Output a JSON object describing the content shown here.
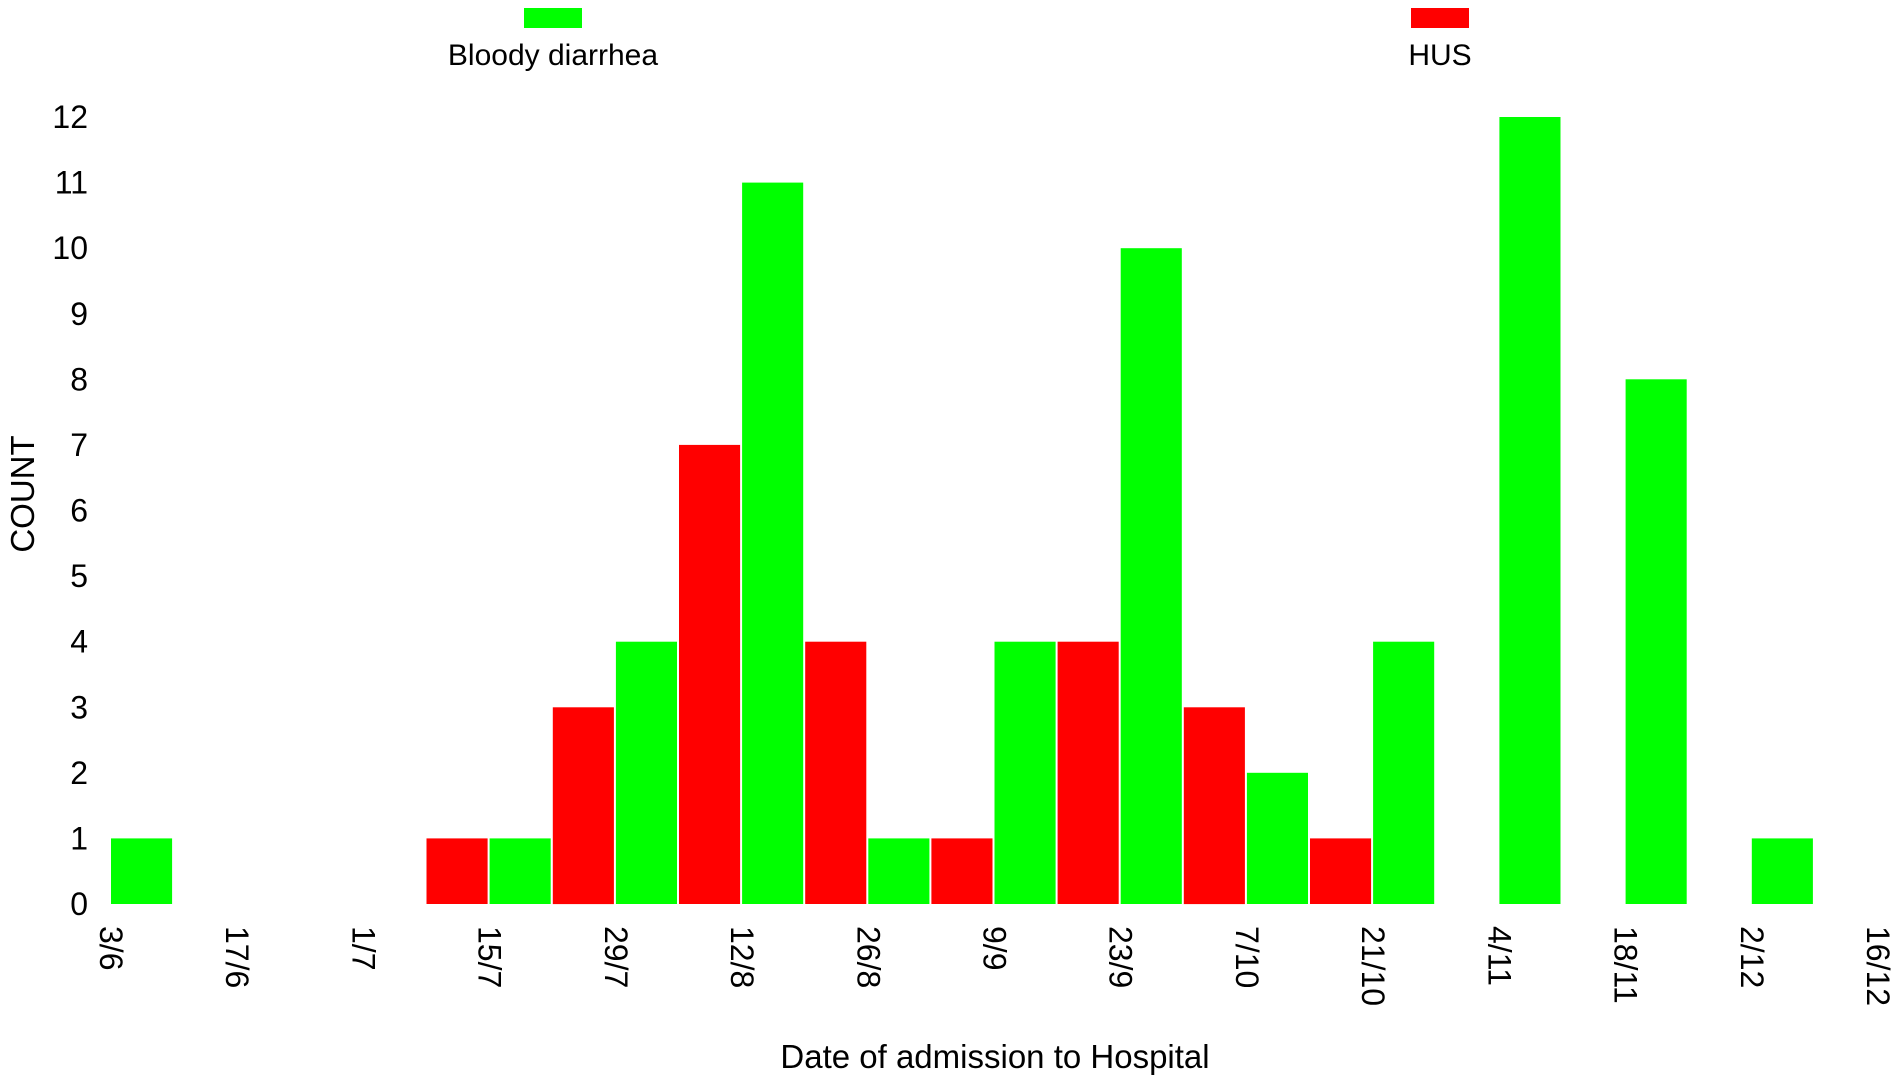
{
  "chart_data": {
    "type": "bar",
    "xlabel": "Date of admission to Hospital",
    "ylabel": "COUNT",
    "ylim": [
      0,
      12
    ],
    "yticks": [
      "0",
      "1",
      "2",
      "3",
      "4",
      "5",
      "6",
      "7",
      "8",
      "9",
      "10",
      "11",
      "12"
    ],
    "xticks": [
      "3/6",
      "17/6",
      "1/7",
      "15/7",
      "29/7",
      "12/8",
      "26/8",
      "9/9",
      "23/9",
      "7/10",
      "21/10",
      "4/11",
      "18/11",
      "2/12",
      "16/12"
    ],
    "grid": false,
    "legend_position": "top",
    "series": [
      {
        "name": "Bloody diarrhea",
        "color": "#00ff00"
      },
      {
        "name": "HUS",
        "color": "#ff0000"
      }
    ],
    "bars": [
      {
        "start": "3/6",
        "end": "10/6",
        "series": "Bloody diarrhea",
        "value": 1
      },
      {
        "start": "8/7",
        "end": "15/7",
        "series": "HUS",
        "value": 1
      },
      {
        "start": "15/7",
        "end": "22/7",
        "series": "Bloody diarrhea",
        "value": 1
      },
      {
        "start": "22/7",
        "end": "29/7",
        "series": "HUS",
        "value": 3
      },
      {
        "start": "29/7",
        "end": "5/8",
        "series": "Bloody diarrhea",
        "value": 4
      },
      {
        "start": "5/8",
        "end": "12/8",
        "series": "HUS",
        "value": 7
      },
      {
        "start": "12/8",
        "end": "19/8",
        "series": "Bloody diarrhea",
        "value": 11
      },
      {
        "start": "19/8",
        "end": "26/8",
        "series": "HUS",
        "value": 4
      },
      {
        "start": "26/8",
        "end": "2/9",
        "series": "Bloody diarrhea",
        "value": 1
      },
      {
        "start": "2/9",
        "end": "9/9",
        "series": "HUS",
        "value": 1
      },
      {
        "start": "9/9",
        "end": "16/9",
        "series": "Bloody diarrhea",
        "value": 4
      },
      {
        "start": "16/9",
        "end": "23/9",
        "series": "HUS",
        "value": 4
      },
      {
        "start": "23/9",
        "end": "30/9",
        "series": "Bloody diarrhea",
        "value": 10
      },
      {
        "start": "30/9",
        "end": "7/10",
        "series": "HUS",
        "value": 3
      },
      {
        "start": "7/10",
        "end": "14/10",
        "series": "Bloody diarrhea",
        "value": 2
      },
      {
        "start": "14/10",
        "end": "21/10",
        "series": "HUS",
        "value": 1
      },
      {
        "start": "21/10",
        "end": "28/10",
        "series": "Bloody diarrhea",
        "value": 4
      },
      {
        "start": "4/11",
        "end": "11/11",
        "series": "Bloody diarrhea",
        "value": 12
      },
      {
        "start": "18/11",
        "end": "25/11",
        "series": "Bloody diarrhea",
        "value": 8
      },
      {
        "start": "2/12",
        "end": "9/12",
        "series": "Bloody diarrhea",
        "value": 1
      }
    ]
  }
}
